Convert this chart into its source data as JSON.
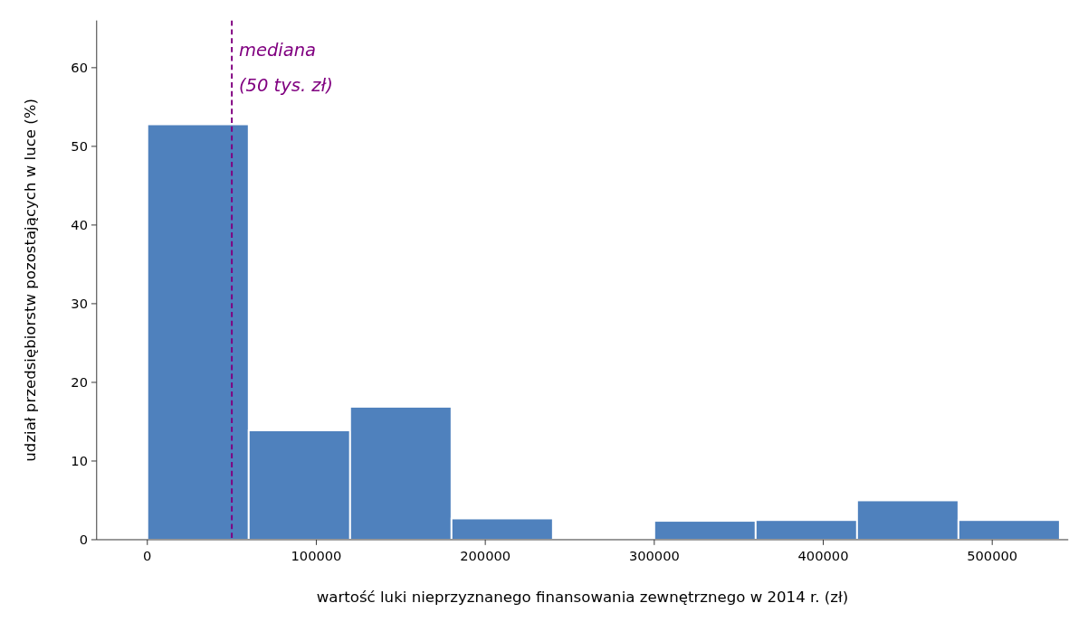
{
  "chart_data": {
    "type": "histogram",
    "xlabel": "wartość luki nieprzyznanego finansowania zewnętrznego w 2014 r. (zł)",
    "ylabel": "udział przedsiębiorstw pozostających w luce (%)",
    "bins": [
      0,
      60000,
      120000,
      180000,
      240000,
      300000,
      360000,
      420000,
      480000,
      540000
    ],
    "values": [
      52.8,
      13.9,
      16.9,
      2.7,
      0,
      2.4,
      2.5,
      5.0,
      2.5
    ],
    "color": "#4f81bd",
    "xlim": [
      -30000,
      545000
    ],
    "xticks": [
      0,
      100000,
      200000,
      300000,
      400000,
      500000
    ],
    "ylim": [
      0,
      66
    ],
    "yticks": [
      0,
      10,
      20,
      30,
      40,
      50,
      60
    ],
    "ref_lines": [
      {
        "axis": "x",
        "value": 50000,
        "label": "mediana (50 tys. zł)",
        "color": "#800080",
        "line_style": "dashed"
      }
    ],
    "grid": false
  }
}
